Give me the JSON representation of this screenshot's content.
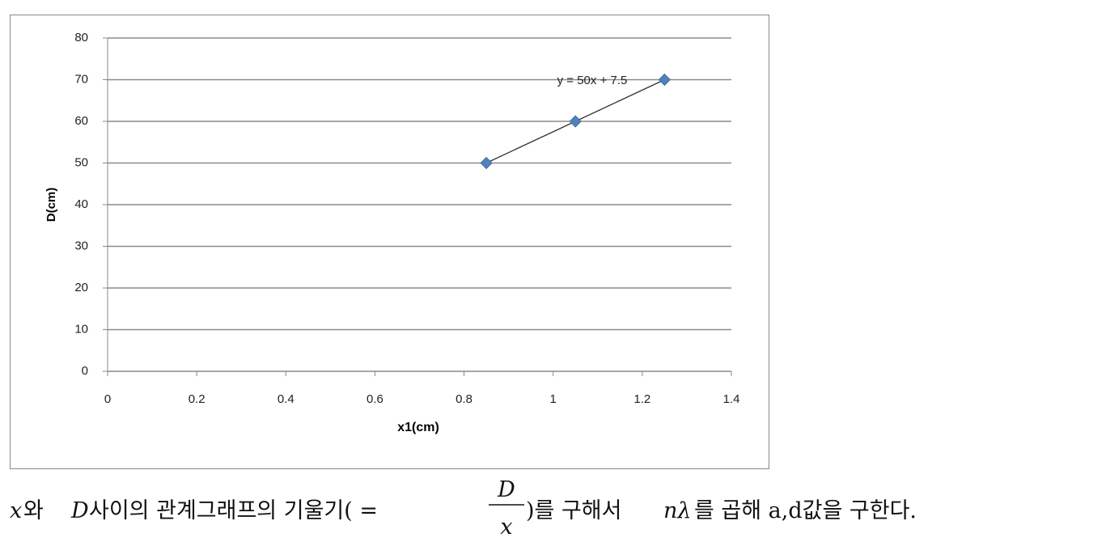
{
  "chart_data": {
    "type": "scatter",
    "x": [
      0.85,
      1.05,
      1.25
    ],
    "series": [
      {
        "values": [
          50,
          60,
          70
        ],
        "color": "#4f81bd"
      }
    ],
    "trendline_label": "y = 50x + 7.5",
    "xlabel": "x1(cm)",
    "ylabel": "D(cm)",
    "xlim": [
      0,
      1.4
    ],
    "xticks": [
      0,
      0.2,
      0.4,
      0.6,
      0.8,
      1,
      1.2,
      1.4
    ],
    "ylim": [
      0,
      80
    ],
    "yticks": [
      0,
      10,
      20,
      30,
      40,
      50,
      60,
      70,
      80
    ],
    "grid": true
  },
  "caption": {
    "x": "x",
    "t1": "와",
    "D": "D",
    "t2": "사이의 관계그래프의 기울기( =",
    "num": "D",
    "den": "x",
    "t3": ")를 구해서",
    "nl": "nλ",
    "t4": "를 곱해 a,d값을 구한다."
  }
}
